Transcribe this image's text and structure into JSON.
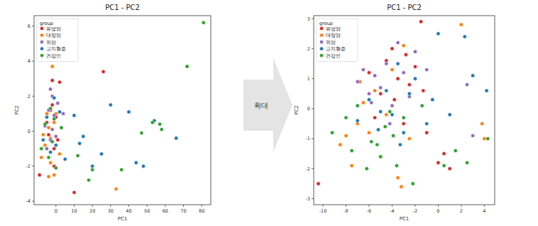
{
  "arrow_label": "확대",
  "chart_data": [
    {
      "type": "scatter",
      "title": "PC1 - PC2",
      "x_label": "PC1",
      "y_label": "PC2",
      "xlim": [
        -12,
        85
      ],
      "ylim": [
        -4.2,
        6.6
      ],
      "xticks": [
        0,
        10,
        20,
        30,
        40,
        50,
        60,
        70,
        80
      ],
      "yticks": [
        -4,
        -2,
        0,
        2,
        4,
        6
      ],
      "legend": "upper left",
      "legend_title": "group",
      "marker": "circle",
      "series": [
        {
          "name": "유방암",
          "color": "#d62728",
          "x": [
            -9,
            -5,
            -3,
            -2,
            -1,
            0,
            1,
            2,
            -4,
            -2,
            26,
            10,
            -1
          ],
          "values": [
            -2.5,
            0.5,
            1.2,
            2.9,
            -1.0,
            0.8,
            -0.5,
            2.8,
            -0.2,
            1.5,
            3.4,
            -3.5,
            -2.0
          ]
        },
        {
          "name": "대장암",
          "color": "#ff7f0e",
          "x": [
            -8,
            -6,
            -5,
            -4,
            -3,
            -2,
            -1,
            0,
            2,
            -3,
            -1,
            33,
            -7,
            -4
          ],
          "values": [
            -1.5,
            -0.8,
            1.0,
            0.2,
            -0.4,
            3.7,
            -2.5,
            1.0,
            -1.3,
            -1.8,
            0.5,
            -3.3,
            -0.2,
            -2.6
          ]
        },
        {
          "name": "위암",
          "color": "#9467bd",
          "x": [
            -6,
            -4,
            -3,
            -2,
            -1,
            0,
            1,
            -5,
            -2,
            4,
            -3
          ],
          "values": [
            0.3,
            1.2,
            -0.5,
            2.0,
            0.9,
            -0.3,
            1.6,
            -1.0,
            0.1,
            1.0,
            2.4
          ]
        },
        {
          "name": "고지혈증",
          "color": "#1f77b4",
          "x": [
            -7,
            -5,
            -3,
            -1,
            0,
            2,
            5,
            10,
            15,
            20,
            30,
            40,
            44,
            48,
            54,
            66,
            13,
            25
          ],
          "values": [
            -0.5,
            0.8,
            -1.2,
            1.9,
            -0.8,
            1.1,
            -1.6,
            0.9,
            -0.3,
            -2.0,
            1.5,
            1.1,
            -1.8,
            -2.0,
            0.6,
            -0.4,
            -0.7,
            -1.3
          ]
        },
        {
          "name": "건강인",
          "color": "#2ca02c",
          "x": [
            -8,
            -6,
            -4,
            -3,
            -2,
            -1,
            0,
            3,
            12,
            18,
            20,
            36,
            47,
            53,
            57,
            58,
            72,
            81
          ],
          "values": [
            -1.0,
            0.4,
            -1.5,
            1.3,
            -0.6,
            0.7,
            -2.1,
            0.2,
            -1.4,
            -2.8,
            -2.2,
            -2.2,
            -0.1,
            0.5,
            0.4,
            0.1,
            3.7,
            6.2
          ]
        }
      ]
    },
    {
      "type": "scatter",
      "title": "PC1 - PC2",
      "x_label": "PC1",
      "y_label": "PC2",
      "xlim": [
        -10.8,
        4.9
      ],
      "ylim": [
        -3.2,
        3.1
      ],
      "xticks": [
        -10,
        -8,
        -6,
        -4,
        -2,
        0,
        2,
        4
      ],
      "yticks": [
        -3,
        -2,
        -1,
        0,
        1,
        2,
        3
      ],
      "legend": "upper left",
      "legend_title": "group",
      "marker": "circle",
      "series": [
        {
          "name": "유방암",
          "color": "#d62728",
          "x": [
            -10.4,
            -6,
            -5,
            -4.5,
            -4,
            -3.5,
            -3,
            -2.5,
            -2,
            -1.5,
            -1,
            0,
            0.5,
            1,
            -5.5,
            -3.8,
            -2.8,
            -1.3
          ],
          "values": [
            -2.5,
            1.2,
            0.5,
            1.6,
            2.0,
            1.0,
            -0.5,
            0.8,
            1.4,
            2.9,
            -0.8,
            -1.8,
            -1.5,
            -2.0,
            -0.3,
            0.3,
            1.8,
            0.6
          ]
        },
        {
          "name": "대장암",
          "color": "#ff7f0e",
          "x": [
            -8.5,
            -8,
            -7.5,
            -7,
            -6.5,
            -6,
            -5.5,
            -5,
            -4.5,
            -4,
            -3.5,
            -3,
            -2.5,
            2,
            3.8,
            4,
            -6.8,
            -3.2
          ],
          "values": [
            -1.2,
            -0.9,
            -1.9,
            -0.5,
            0.2,
            -0.8,
            0.6,
            -1.6,
            -0.2,
            1.3,
            -2.3,
            2.1,
            -1.0,
            2.8,
            -0.5,
            -1.0,
            0.9,
            -2.6
          ]
        },
        {
          "name": "위암",
          "color": "#9467bd",
          "x": [
            -7,
            -6.5,
            -6,
            -5.5,
            -5,
            -4.5,
            -4,
            -3.5,
            -3,
            -2.5,
            -2,
            -1,
            2.5,
            3,
            -5.8,
            -4.2
          ],
          "values": [
            0.9,
            1.3,
            0.5,
            1.1,
            0.7,
            1.5,
            0.1,
            2.2,
            1.2,
            0.4,
            1.9,
            1.3,
            0.8,
            -0.9,
            0.2,
            -0.5
          ]
        },
        {
          "name": "고지혈증",
          "color": "#1f77b4",
          "x": [
            -7,
            -6,
            -5,
            -4.5,
            -4,
            -3.5,
            -3,
            -2.5,
            -2,
            -1,
            -0.5,
            0,
            1,
            2.3,
            3,
            4.2,
            -3.3,
            -5.2
          ],
          "values": [
            -0.4,
            0.3,
            -0.1,
            0.6,
            -0.2,
            1.5,
            -0.8,
            0.5,
            1.0,
            -0.5,
            0.3,
            2.5,
            -0.2,
            2.4,
            1.1,
            0.6,
            -1.2,
            -0.7
          ]
        },
        {
          "name": "건강인",
          "color": "#2ca02c",
          "x": [
            -9.2,
            -8,
            -7.5,
            -7,
            -6.2,
            -5.8,
            -5,
            -4.6,
            -4.2,
            -3.6,
            -3,
            -2.2,
            -1.4,
            0.5,
            1.5,
            2.5,
            4.3,
            -5.3,
            -3.9
          ],
          "values": [
            -0.8,
            -0.3,
            -1.4,
            0.1,
            -2.0,
            -1.1,
            -1.6,
            -0.6,
            -0.1,
            -1.9,
            -0.3,
            -2.5,
            0.1,
            -1.9,
            -1.4,
            -1.8,
            -1.0,
            -1.2,
            -0.9
          ]
        }
      ]
    }
  ]
}
